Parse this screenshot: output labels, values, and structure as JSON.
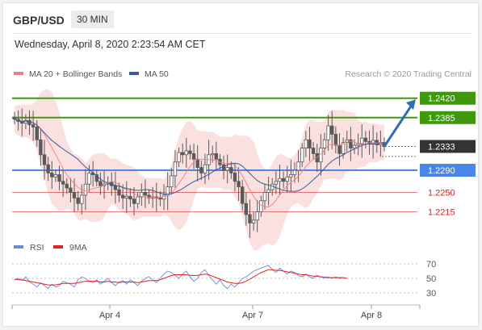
{
  "header": {
    "symbol": "GBP/USD",
    "timeframe": "30 MIN",
    "timestamp": "Wednesday, April 8, 2020 2:23:54 AM CET"
  },
  "colors": {
    "candle": "#5a5a5a",
    "bollinger_fill": "#fadadb",
    "ma20": "#f08080",
    "ma50": "#3a5a9a",
    "resistance": "#3f9a0b",
    "pivot": "#4a86e8",
    "support": "#d62020",
    "current": "#333333",
    "arrow": "#2f6fb5",
    "rsi": "#6a8ad8",
    "rsi_ma": "#e02424"
  },
  "chart_data": [
    {
      "type": "candlestick",
      "legend": [
        "MA 20 + Bollinger Bands",
        "MA 50"
      ],
      "source": "Research © 2020 Trading Central",
      "x_ticks": [
        "Apr 4",
        "Apr 7",
        "Apr 8"
      ],
      "ylim": [
        1.2175,
        1.244
      ],
      "levels": [
        {
          "value": 1.242,
          "label": "1.2420",
          "kind": "resistance"
        },
        {
          "value": 1.2385,
          "label": "1.2385",
          "kind": "resistance"
        },
        {
          "value": 1.2333,
          "label": "1.2333",
          "kind": "current"
        },
        {
          "value": 1.229,
          "label": "1.2290",
          "kind": "pivot"
        },
        {
          "value": 1.225,
          "label": "1.2250",
          "kind": "support"
        },
        {
          "value": 1.2215,
          "label": "1.2215",
          "kind": "support"
        }
      ],
      "close_path": [
        1.2382,
        1.2378,
        1.2375,
        1.238,
        1.2372,
        1.2368,
        1.2345,
        1.2318,
        1.23,
        1.2285,
        1.2278,
        1.2282,
        1.227,
        1.2265,
        1.2258,
        1.225,
        1.224,
        1.223,
        1.2245,
        1.2265,
        1.2285,
        1.2282,
        1.227,
        1.2262,
        1.2265,
        1.2268,
        1.2262,
        1.2255,
        1.2245,
        1.224,
        1.2243,
        1.2238,
        1.223,
        1.2242,
        1.225,
        1.2245,
        1.224,
        1.2242,
        1.224,
        1.2238,
        1.2245,
        1.226,
        1.228,
        1.2305,
        1.2322,
        1.2318,
        1.2325,
        1.232,
        1.231,
        1.2295,
        1.2285,
        1.23,
        1.2318,
        1.232,
        1.231,
        1.23,
        1.229,
        1.2295,
        1.2285,
        1.227,
        1.226,
        1.223,
        1.221,
        1.2195,
        1.22,
        1.2215,
        1.2235,
        1.225,
        1.2255,
        1.2265,
        1.227,
        1.2275,
        1.227,
        1.2278,
        1.2282,
        1.229,
        1.2305,
        1.233,
        1.2345,
        1.233,
        1.232,
        1.2305,
        1.233,
        1.2345,
        1.237,
        1.2355,
        1.2335,
        1.232,
        1.234,
        1.2345,
        1.233,
        1.2335,
        1.2338,
        1.2348,
        1.2342,
        1.2338,
        1.2344,
        1.2336,
        1.234,
        1.2333
      ],
      "rsi": {
        "legend": [
          "RSI",
          "9MA"
        ],
        "ylim": [
          20,
          80
        ],
        "levels": [
          70,
          50,
          30
        ],
        "level_labels": [
          "70",
          "50",
          "30"
        ],
        "rsi_values": [
          48,
          50,
          47,
          52,
          45,
          42,
          38,
          44,
          40,
          36,
          42,
          38,
          40,
          46,
          44,
          42,
          38,
          48,
          52,
          50,
          46,
          44,
          48,
          42,
          46,
          50,
          44,
          40,
          45,
          47,
          42,
          48,
          44,
          40,
          46,
          50,
          52,
          48,
          44,
          50,
          56,
          60,
          58,
          54,
          50,
          56,
          60,
          52,
          46,
          50,
          58,
          62,
          54,
          48,
          42,
          48,
          40,
          36,
          42,
          38,
          44,
          50,
          52,
          56,
          60,
          62,
          64,
          66,
          68,
          62,
          58,
          64,
          60,
          56,
          60,
          58,
          54,
          52,
          56,
          52,
          50,
          54,
          52,
          50,
          52,
          50,
          52,
          50,
          51,
          50
        ],
        "ma_values": [
          49,
          48,
          48,
          47,
          46,
          45,
          44,
          43,
          42,
          41,
          41,
          41,
          42,
          43,
          43,
          43,
          43,
          44,
          45,
          46,
          46,
          46,
          46,
          45,
          45,
          46,
          45,
          45,
          44,
          45,
          45,
          45,
          45,
          44,
          45,
          46,
          47,
          47,
          47,
          48,
          50,
          52,
          54,
          55,
          55,
          55,
          55,
          54,
          54,
          54,
          55,
          56,
          55,
          53,
          51,
          49,
          47,
          45,
          44,
          43,
          43,
          44,
          46,
          49,
          52,
          55,
          58,
          60,
          62,
          62,
          61,
          61,
          60,
          59,
          58,
          57,
          56,
          55,
          55,
          54,
          53,
          53,
          52,
          52,
          51,
          51,
          51,
          51,
          51,
          50
        ]
      }
    }
  ]
}
